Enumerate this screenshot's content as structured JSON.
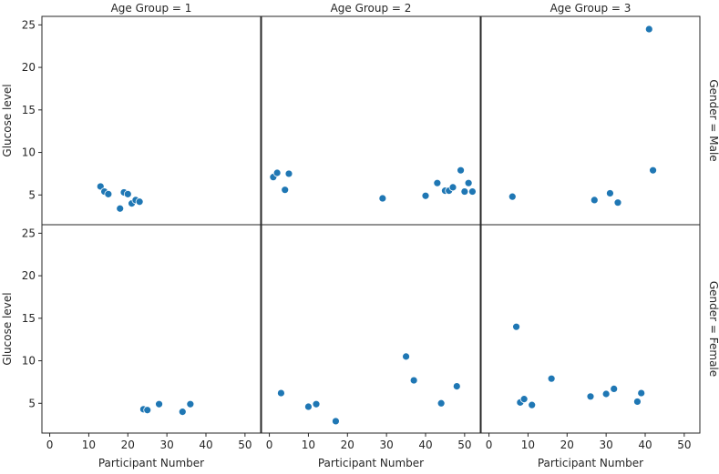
{
  "chart_data": {
    "type": "scatter",
    "layout": "facet-grid",
    "column_labels": [
      "Age Group = 1",
      "Age Group = 2",
      "Age Group = 3"
    ],
    "row_labels": [
      "Gender = Male",
      "Gender = Female"
    ],
    "xlabel": "Participant Number",
    "ylabel": "Glucose level",
    "xlim": [
      -2,
      54
    ],
    "ylim": [
      1.5,
      26
    ],
    "xticks": [
      0,
      10,
      20,
      30,
      40,
      50
    ],
    "yticks": [
      5,
      10,
      15,
      20,
      25
    ],
    "color": "#1f77b4",
    "panels": [
      {
        "column": 0,
        "row": 0,
        "points": [
          [
            13,
            6.0
          ],
          [
            14,
            5.4
          ],
          [
            15,
            5.1
          ],
          [
            18,
            3.4
          ],
          [
            19,
            5.3
          ],
          [
            20,
            5.1
          ],
          [
            21,
            4.0
          ],
          [
            22,
            4.4
          ],
          [
            23,
            4.2
          ]
        ]
      },
      {
        "column": 1,
        "row": 0,
        "points": [
          [
            1,
            7.1
          ],
          [
            2,
            7.6
          ],
          [
            4,
            5.6
          ],
          [
            5,
            7.5
          ],
          [
            29,
            4.6
          ],
          [
            40,
            4.9
          ],
          [
            43,
            6.4
          ],
          [
            45,
            5.5
          ],
          [
            46,
            5.5
          ],
          [
            47,
            5.9
          ],
          [
            49,
            7.9
          ],
          [
            50,
            5.4
          ],
          [
            51,
            6.4
          ],
          [
            52,
            5.4
          ]
        ]
      },
      {
        "column": 2,
        "row": 0,
        "points": [
          [
            6,
            4.8
          ],
          [
            27,
            4.4
          ],
          [
            31,
            5.2
          ],
          [
            33,
            4.1
          ],
          [
            41,
            24.5
          ],
          [
            42,
            7.9
          ]
        ]
      },
      {
        "column": 0,
        "row": 1,
        "points": [
          [
            24,
            4.3
          ],
          [
            25,
            4.2
          ],
          [
            28,
            4.9
          ],
          [
            34,
            4.0
          ],
          [
            36,
            4.9
          ]
        ]
      },
      {
        "column": 1,
        "row": 1,
        "points": [
          [
            3,
            6.2
          ],
          [
            10,
            4.6
          ],
          [
            12,
            4.9
          ],
          [
            17,
            2.9
          ],
          [
            35,
            10.5
          ],
          [
            37,
            7.7
          ],
          [
            44,
            5.0
          ],
          [
            48,
            7.0
          ]
        ]
      },
      {
        "column": 2,
        "row": 1,
        "points": [
          [
            7,
            14.0
          ],
          [
            8,
            5.1
          ],
          [
            9,
            5.5
          ],
          [
            11,
            4.8
          ],
          [
            16,
            7.9
          ],
          [
            26,
            5.8
          ],
          [
            30,
            6.1
          ],
          [
            32,
            6.7
          ],
          [
            38,
            5.2
          ],
          [
            39,
            6.2
          ]
        ]
      }
    ]
  }
}
